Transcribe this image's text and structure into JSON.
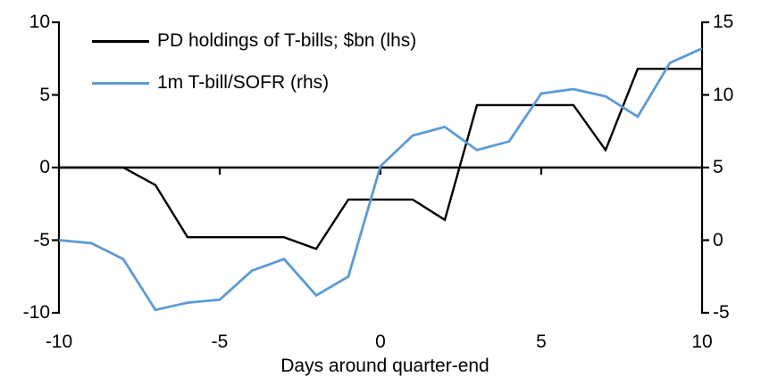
{
  "accent_color": "#5B9BD5",
  "line_color_black": "#000000",
  "chart_data": {
    "type": "line",
    "title": "",
    "xlabel": "Days around quarter-end",
    "grid": false,
    "legend_position": "top-left",
    "x": [
      -10,
      -9,
      -8,
      -7,
      -6,
      -5,
      -4,
      -3,
      -2,
      -1,
      0,
      1,
      2,
      3,
      4,
      5,
      6,
      7,
      8,
      9,
      10
    ],
    "x_axis": {
      "range": [
        -10,
        10
      ],
      "ticks": [
        -10,
        -5,
        0,
        5,
        10
      ],
      "tick_labels": [
        "-10",
        "-5",
        "0",
        "5",
        "10"
      ]
    },
    "left_axis": {
      "range": [
        -10,
        10
      ],
      "ticks": [
        10,
        5,
        0,
        -5,
        -10
      ],
      "tick_labels": [
        "10",
        "5",
        "0",
        "-5",
        "-10"
      ]
    },
    "right_axis": {
      "range": [
        -5,
        15
      ],
      "ticks": [
        15,
        10,
        5,
        0,
        -5
      ],
      "tick_labels": [
        "15",
        "10",
        "5",
        "0",
        "-5"
      ]
    },
    "series": [
      {
        "name": "PD holdings of T-bills; $bn (lhs)",
        "axis": "left",
        "color": "#000000",
        "values": [
          0,
          0,
          0,
          -1.2,
          -4.8,
          -4.8,
          -4.8,
          -4.8,
          -5.6,
          -2.2,
          -2.2,
          -2.2,
          -3.6,
          4.3,
          4.3,
          4.3,
          4.3,
          1.2,
          6.8,
          6.8,
          6.8
        ]
      },
      {
        "name": "1m T-bill/SOFR (rhs)",
        "axis": "right",
        "color": "#5B9BD5",
        "values": [
          0.0,
          -0.2,
          -1.3,
          -4.8,
          -4.3,
          -4.1,
          -2.1,
          -1.3,
          -3.8,
          -2.5,
          5.1,
          7.2,
          7.8,
          6.2,
          6.8,
          10.1,
          10.4,
          9.9,
          8.5,
          12.2,
          13.2
        ]
      }
    ]
  }
}
